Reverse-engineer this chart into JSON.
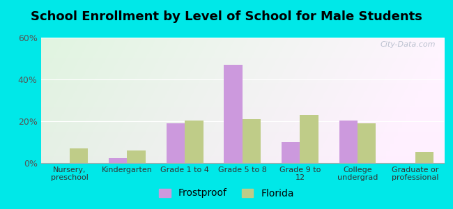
{
  "title": "School Enrollment by Level of School for Male Students",
  "categories": [
    "Nursery,\npreschool",
    "Kindergarten",
    "Grade 1 to 4",
    "Grade 5 to 8",
    "Grade 9 to\n12",
    "College\nundergrad",
    "Graduate or\nprofessional"
  ],
  "frostproof": [
    0,
    2.5,
    19,
    47,
    10,
    20.5,
    0
  ],
  "florida": [
    7,
    6,
    20.5,
    21,
    23,
    19,
    5.5
  ],
  "frostproof_color": "#cc99dd",
  "florida_color": "#bfcc88",
  "bg_color": "#00e8e8",
  "title_fontsize": 13,
  "ylim": [
    0,
    60
  ],
  "yticks": [
    0,
    20,
    40,
    60
  ],
  "ytick_labels": [
    "0%",
    "20%",
    "40%",
    "60%"
  ],
  "watermark": "City-Data.com",
  "bar_width": 0.32
}
